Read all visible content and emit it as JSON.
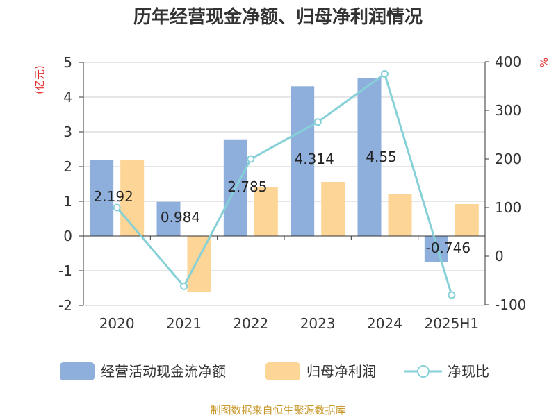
{
  "chart_data": {
    "type": "bar",
    "title": "历年经营现金净额、归母净利润情况",
    "categories": [
      "2020",
      "2021",
      "2022",
      "2023",
      "2024",
      "2025H1"
    ],
    "series": [
      {
        "name": "经营活动现金流净额",
        "type": "bar",
        "axis": "left",
        "color": "#8eaedc",
        "values": [
          2.192,
          0.984,
          2.785,
          4.314,
          4.55,
          -0.746
        ]
      },
      {
        "name": "归母净利润",
        "type": "bar",
        "axis": "left",
        "color": "#fdd596",
        "values": [
          2.2,
          -1.62,
          1.4,
          1.56,
          1.2,
          0.92
        ]
      },
      {
        "name": "净现比",
        "type": "line",
        "axis": "right",
        "color": "#86d0d7",
        "values": [
          100,
          -62,
          200,
          276,
          375,
          -80
        ]
      }
    ],
    "data_labels": [
      "2.192",
      "0.984",
      "2.785",
      "4.314",
      "4.55",
      "-0.746"
    ],
    "y_left": {
      "label": "(亿元)",
      "ticks": [
        "5",
        "4",
        "3",
        "2",
        "1",
        "0",
        "-1",
        "-2"
      ],
      "min": -2,
      "max": 5
    },
    "y_right": {
      "label": "%",
      "ticks": [
        "400",
        "300",
        "200",
        "100",
        "0",
        "-100"
      ],
      "min": -100,
      "max": 400
    },
    "grid": true,
    "legend_position": "bottom",
    "source": "制图数据来自恒生聚源数据库",
    "colors": {
      "axis": "#333333",
      "grid": "#cccccc",
      "unit": "#e0312f",
      "source": "#c8982b"
    }
  }
}
